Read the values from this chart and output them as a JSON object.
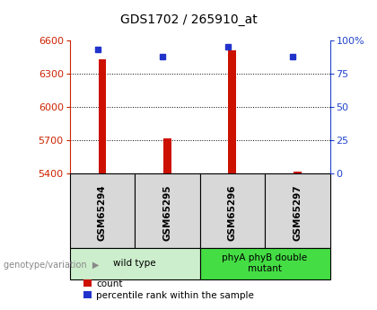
{
  "title": "GDS1702 / 265910_at",
  "samples": [
    "GSM65294",
    "GSM65295",
    "GSM65296",
    "GSM65297"
  ],
  "count_values": [
    6430,
    5720,
    6510,
    5415
  ],
  "percentile_values": [
    93,
    88,
    95,
    88
  ],
  "y_min": 5400,
  "y_max": 6600,
  "y_ticks": [
    5400,
    5700,
    6000,
    6300,
    6600
  ],
  "y2_ticks": [
    0,
    25,
    50,
    75,
    100
  ],
  "groups": [
    {
      "label": "wild type",
      "samples": [
        0,
        1
      ],
      "color": "#cceecc"
    },
    {
      "label": "phyA phyB double\nmutant",
      "samples": [
        2,
        3
      ],
      "color": "#44dd44"
    }
  ],
  "bar_color": "#cc1100",
  "dot_color": "#2233cc",
  "left_axis_color": "#cc2200",
  "right_axis_color": "#2244cc",
  "sample_bg_color": "#d8d8d8",
  "plot_bg_color": "#ffffff",
  "legend_items": [
    "count",
    "percentile rank within the sample"
  ],
  "genotype_label": "genotype/variation"
}
